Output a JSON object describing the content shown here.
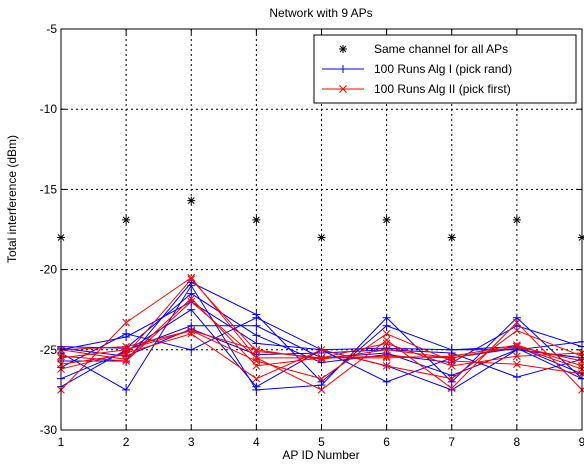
{
  "chart_data": {
    "type": "line",
    "title": "Network with 9 APs",
    "xlabel": "AP ID Number",
    "ylabel": "Total interference (dBm)",
    "xlim": [
      1,
      9
    ],
    "ylim": [
      -30,
      -5
    ],
    "x_ticks": [
      1,
      2,
      3,
      4,
      5,
      6,
      7,
      8,
      9
    ],
    "y_ticks": [
      -30,
      -25,
      -20,
      -15,
      -10,
      -5
    ],
    "grid": true,
    "grid_style": "dotted",
    "legend_position": "top-right",
    "x": [
      1,
      2,
      3,
      4,
      5,
      6,
      7,
      8,
      9
    ],
    "series": [
      {
        "name": "Same channel for all APs",
        "style": "markers",
        "marker": "asterisk",
        "color": "#000000",
        "values": [
          -18.0,
          -16.9,
          -15.7,
          -16.9,
          -18.0,
          -16.9,
          -18.0,
          -16.9,
          -18.0
        ]
      },
      {
        "name": "100 Runs Alg I (pick rand)",
        "style": "line",
        "marker": "plus",
        "color": "#0000ff",
        "runs": [
          [
            -25.2,
            -27.5,
            -21.0,
            -27.5,
            -27.2,
            -23.0,
            -27.0,
            -23.0,
            -26.8
          ],
          [
            -26.1,
            -24.0,
            -25.0,
            -23.0,
            -25.0,
            -26.0,
            -27.5,
            -25.0,
            -24.5
          ],
          [
            -25.7,
            -25.7,
            -20.8,
            -22.8,
            -27.0,
            -23.5,
            -25.0,
            -24.8,
            -26.5
          ],
          [
            -27.3,
            -25.0,
            -23.5,
            -23.5,
            -25.5,
            -25.2,
            -26.6,
            -25.0,
            -25.5
          ],
          [
            -25.0,
            -24.2,
            -22.0,
            -24.6,
            -25.0,
            -27.0,
            -25.5,
            -24.9,
            -26.8
          ],
          [
            -24.9,
            -25.4,
            -23.7,
            -25.3,
            -25.2,
            -25.0,
            -25.2,
            -26.7,
            -25.6
          ],
          [
            -24.8,
            -24.9,
            -21.5,
            -24.1,
            -25.8,
            -25.3,
            -25.8,
            -23.5,
            -24.8
          ],
          [
            -26.8,
            -25.1,
            -22.5,
            -27.3,
            -25.0,
            -24.9,
            -25.0,
            -25.0,
            -25.5
          ]
        ]
      },
      {
        "name": "100 Runs Alg II (pick first)",
        "style": "line",
        "marker": "x",
        "color": "#ff0000",
        "runs": [
          [
            -27.5,
            -23.3,
            -20.5,
            -25.5,
            -27.5,
            -24.4,
            -27.4,
            -23.3,
            -27.5
          ],
          [
            -25.0,
            -25.6,
            -21.8,
            -26.0,
            -25.5,
            -24.6,
            -26.0,
            -25.4,
            -25.2
          ],
          [
            -25.4,
            -25.7,
            -22.0,
            -25.5,
            -25.5,
            -25.4,
            -25.5,
            -24.8,
            -25.7
          ],
          [
            -25.0,
            -24.8,
            -23.8,
            -25.0,
            -25.6,
            -25.0,
            -25.5,
            -24.8,
            -26.2
          ],
          [
            -26.2,
            -25.2,
            -24.0,
            -26.8,
            -25.0,
            -26.0,
            -26.8,
            -23.8,
            -25.4
          ],
          [
            -25.5,
            -25.0,
            -23.8,
            -25.7,
            -26.8,
            -24.0,
            -25.7,
            -25.9,
            -26.5
          ],
          [
            -25.9,
            -25.3,
            -20.6,
            -25.1,
            -25.5,
            -25.5,
            -25.4,
            -24.7,
            -26.0
          ]
        ]
      }
    ]
  }
}
